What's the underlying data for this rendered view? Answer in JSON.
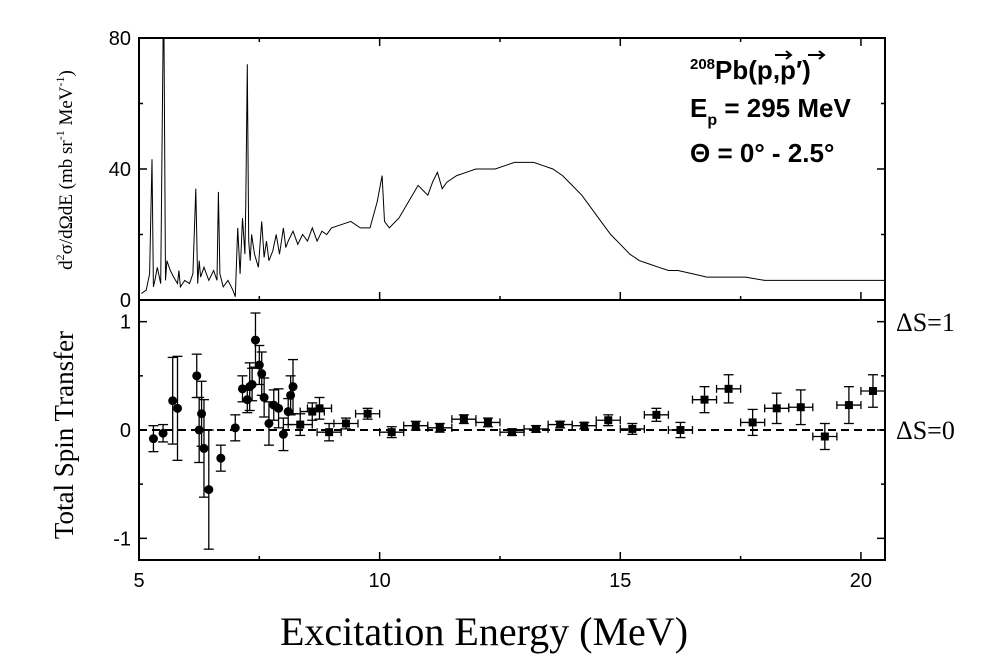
{
  "chart_data": [
    {
      "type": "line",
      "panel": "top",
      "annotation_lines": [
        "208Pb(p,p′)",
        "Ep = 295 MeV",
        "Θ = 0° - 2.5°"
      ],
      "annotation": {
        "reaction_mass": "208",
        "reaction_element": "Pb(",
        "reaction_p1": "p",
        "reaction_comma": ",",
        "reaction_p2": "p",
        "reaction_prime": "′",
        "reaction_close": ")",
        "energy_symbol": "E",
        "energy_sub": "p",
        "energy_value": " = 295 MeV",
        "angle": "Θ = 0° - 2.5°"
      },
      "ylabel": "d²σ/dΩdE (mb sr⁻¹ MeV⁻¹)",
      "ylabel_parts": {
        "d": "d",
        "sup2": "2",
        "main": "σ/dΩdE (mb sr",
        "sup_neg1": "-1",
        "unit": " MeV",
        "sup_neg1b": "-1",
        "close": ")"
      },
      "xlim": [
        5,
        20.5
      ],
      "ylim": [
        0,
        80
      ],
      "yticks": [
        0,
        40,
        80
      ],
      "ytick_labels": [
        "0",
        "40",
        "80"
      ],
      "x": [
        5.05,
        5.15,
        5.22,
        5.27,
        5.3,
        5.33,
        5.38,
        5.45,
        5.5,
        5.52,
        5.55,
        5.58,
        5.65,
        5.72,
        5.8,
        5.83,
        5.86,
        5.95,
        6.05,
        6.12,
        6.18,
        6.22,
        6.25,
        6.28,
        6.35,
        6.45,
        6.55,
        6.62,
        6.65,
        6.68,
        6.75,
        6.85,
        6.95,
        7.0,
        7.05,
        7.1,
        7.15,
        7.2,
        7.22,
        7.25,
        7.28,
        7.31,
        7.34,
        7.4,
        7.48,
        7.55,
        7.6,
        7.65,
        7.7,
        7.78,
        7.85,
        7.92,
        8.0,
        8.05,
        8.1,
        8.2,
        8.3,
        8.4,
        8.5,
        8.6,
        8.7,
        8.8,
        8.9,
        9.0,
        9.2,
        9.4,
        9.6,
        9.8,
        9.95,
        10.05,
        10.1,
        10.2,
        10.4,
        10.6,
        10.8,
        11.0,
        11.1,
        11.2,
        11.3,
        11.4,
        11.6,
        11.8,
        12.0,
        12.2,
        12.4,
        12.6,
        12.8,
        13.0,
        13.2,
        13.4,
        13.6,
        13.8,
        14.0,
        14.2,
        14.4,
        14.6,
        14.8,
        15.0,
        15.2,
        15.4,
        15.6,
        15.8,
        16.0,
        16.2,
        16.5,
        16.8,
        17.0,
        17.3,
        17.6,
        18.0,
        18.5,
        19.0,
        19.5,
        20.0,
        20.5
      ],
      "y": [
        2,
        3,
        8,
        43,
        4,
        6,
        10,
        5,
        80,
        80,
        6,
        12,
        9,
        7,
        5,
        9,
        4,
        6,
        5,
        8,
        34,
        5,
        12,
        7,
        10,
        6,
        9,
        6,
        33,
        8,
        4,
        6,
        3,
        1,
        22,
        8,
        25,
        14,
        30,
        72,
        18,
        12,
        20,
        14,
        10,
        24,
        13,
        18,
        12,
        15,
        20,
        14,
        22,
        16,
        18,
        21,
        17,
        20,
        18,
        22,
        18,
        21,
        20,
        22,
        23,
        24,
        22,
        22,
        30,
        38,
        24,
        22,
        25,
        30,
        35,
        32,
        36,
        39,
        34,
        36,
        38,
        39,
        40,
        40,
        40,
        41,
        42,
        42,
        42,
        41,
        40,
        38,
        35,
        32,
        28,
        24,
        20,
        17,
        14,
        12,
        11,
        10,
        9,
        9,
        8,
        7,
        7,
        7,
        7,
        6,
        6,
        6,
        6,
        6,
        6
      ]
    },
    {
      "type": "scatter",
      "panel": "bottom",
      "title": "",
      "xlabel": "Excitation Energy (MeV)",
      "ylabel": "Total Spin Transfer",
      "xlim": [
        5,
        20.5
      ],
      "ylim": [
        -1.2,
        1.2
      ],
      "xticks": [
        5,
        10,
        15,
        20
      ],
      "xtick_labels": [
        "5",
        "10",
        "15",
        "20"
      ],
      "yticks": [
        -1,
        0,
        1
      ],
      "ytick_labels": [
        "-1",
        "0",
        "1"
      ],
      "reference_lines": [
        {
          "y": 0,
          "label": "ΔS=0",
          "style": "dashed"
        },
        {
          "y": 1,
          "label": "ΔS=1",
          "style": "none"
        }
      ],
      "series": [
        {
          "marker": "circle",
          "x": [
            5.3,
            5.5,
            5.7,
            5.8,
            6.2,
            6.25,
            6.3,
            6.35,
            6.45,
            6.7,
            7.0,
            7.15,
            7.25,
            7.3,
            7.35,
            7.42,
            7.5,
            7.55,
            7.6,
            7.7,
            7.8,
            7.9,
            8.0,
            8.1,
            8.15,
            8.2
          ],
          "y": [
            -0.08,
            -0.03,
            0.27,
            0.2,
            0.5,
            0.0,
            0.15,
            -0.17,
            -0.55,
            -0.26,
            0.02,
            0.38,
            0.28,
            0.4,
            0.42,
            0.83,
            0.6,
            0.52,
            0.3,
            0.06,
            0.23,
            0.2,
            -0.04,
            0.17,
            0.32,
            0.4
          ],
          "yerr": [
            0.12,
            0.08,
            0.4,
            0.48,
            0.2,
            0.3,
            0.3,
            0.45,
            0.55,
            0.12,
            0.12,
            0.12,
            0.12,
            0.22,
            0.15,
            0.25,
            0.18,
            0.2,
            0.18,
            0.2,
            0.14,
            0.18,
            0.15,
            0.12,
            0.18,
            0.25
          ]
        },
        {
          "marker": "square",
          "x": [
            8.35,
            8.6,
            8.75,
            8.95,
            9.3,
            9.75,
            10.25,
            10.75,
            11.25,
            11.75,
            12.25,
            12.75,
            13.25,
            13.75,
            14.25,
            14.75,
            15.25,
            15.75,
            16.25,
            16.75,
            17.25,
            17.75,
            18.25,
            18.75,
            19.25,
            19.75,
            20.25
          ],
          "y": [
            0.05,
            0.17,
            0.2,
            -0.02,
            0.06,
            0.15,
            -0.02,
            0.04,
            0.02,
            0.1,
            0.07,
            -0.02,
            0.01,
            0.05,
            0.04,
            0.09,
            0.01,
            0.14,
            0.0,
            0.28,
            0.38,
            0.07,
            0.2,
            0.21,
            -0.06,
            0.23,
            0.36
          ],
          "yerr": [
            0.1,
            0.08,
            0.1,
            0.08,
            0.05,
            0.05,
            0.05,
            0.04,
            0.04,
            0.04,
            0.04,
            0.03,
            0.03,
            0.03,
            0.03,
            0.05,
            0.05,
            0.06,
            0.07,
            0.12,
            0.13,
            0.12,
            0.14,
            0.16,
            0.12,
            0.17,
            0.15
          ],
          "xerr": 0.25
        }
      ]
    }
  ]
}
